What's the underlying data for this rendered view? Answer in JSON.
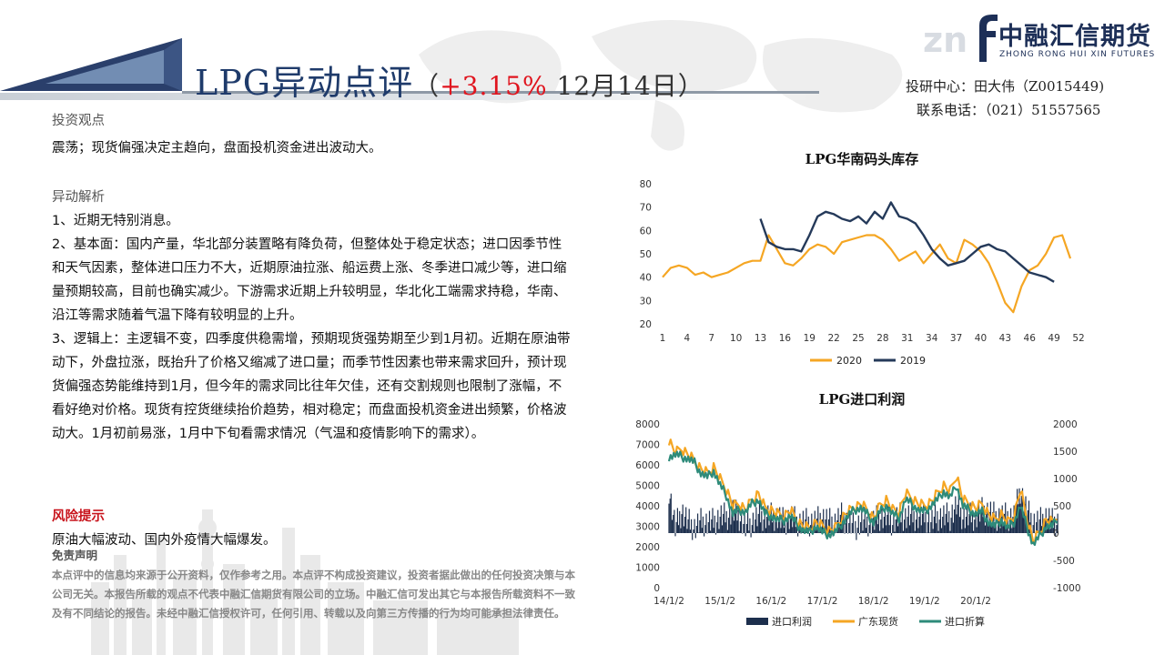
{
  "header": {
    "title_main": "LPG异动点评",
    "paren_open": "（",
    "change_pct": "+3.15%",
    "date": " 12月14日",
    "paren_close": "）"
  },
  "logo": {
    "brand_cn": "中融汇信期货",
    "brand_en": "ZHONG RONG HUI XIN FUTURES"
  },
  "contact": {
    "analyst": "投研中心：田大伟（Z0015449)",
    "phone": "联系电话：（021）51557565"
  },
  "view": {
    "heading": "投资观点",
    "text": "震荡；现货偏强决定主趋向，盘面投机资金进出波动大。"
  },
  "analysis": {
    "heading": "异动解析",
    "p1": "1、近期无特别消息。",
    "p2": "2、基本面：国内产量，华北部分装置略有降负荷，但整体处于稳定状态；进口因季节性和天气因素，整体进口压力不大，近期原油拉涨、船运费上涨、冬季进口减少等，进口缩量预期较高，目前也确实减少。下游需求近期上升较明显，华北化工端需求持稳，华南、沿江等需求随着气温下降有较明显的上升。",
    "p3": "3、逻辑上：主逻辑不变，四季度供稳需增，预期现货强势期至少到1月初。近期在原油带动下，外盘拉涨，既抬升了价格又缩减了进口量；而季节性因素也带来需求回升，预计现货偏强态势能维持到1月，但今年的需求同比往年欠佳，还有交割规则也限制了涨幅，不看好绝对价格。现货有控货继续抬价趋势，相对稳定；而盘面投机资金进出频繁，价格波动大。1月初前易涨，1月中下旬看需求情况（气温和疫情影响下的需求）。"
  },
  "risk": {
    "heading": "风险提示",
    "text": "原油大幅波动、国内外疫情大幅爆发。"
  },
  "disclaimer": {
    "heading": "免责声明",
    "text": "本点评中的信息均来源于公开资料，仅作参考之用。本点评不构成投资建议，投资者据此做出的任何投资决策与本公司无关。本报告所载的观点不代表中融汇信期货有限公司的立场。中融汇信可发出其它与本报告所载资料不一致及有不同结论的报告。未经中融汇信授权许可，任何引用、转载以及向第三方传播的行为均可能承担法律责任。"
  },
  "colors": {
    "navy": "#1f3b6b",
    "red": "#e0141e",
    "orange": "#f5a623",
    "dark": "#253a5a",
    "teal": "#2e8b7a"
  },
  "chart_data": [
    {
      "type": "line",
      "title": "LPG华南码头库存",
      "xlabel": "",
      "ylabel": "",
      "x_ticks": [
        "1",
        "4",
        "7",
        "10",
        "13",
        "16",
        "19",
        "22",
        "25",
        "28",
        "31",
        "34",
        "37",
        "40",
        "43",
        "46",
        "49",
        "52"
      ],
      "ylim": [
        20,
        80
      ],
      "y_ticks": [
        20,
        30,
        40,
        50,
        60,
        70,
        80
      ],
      "legend_position": "bottom",
      "series": [
        {
          "name": "2020",
          "color": "#f5a623",
          "start_week": 1,
          "values": [
            40,
            44,
            45,
            44,
            41,
            42,
            40,
            41,
            42,
            44,
            46,
            47,
            47,
            58,
            52,
            46,
            45,
            48,
            52,
            54,
            53,
            50,
            55,
            56,
            57,
            58,
            58,
            56,
            52,
            47,
            49,
            51,
            46,
            50,
            54,
            48,
            46,
            56,
            54,
            51,
            46,
            38,
            29,
            25,
            36,
            43,
            45,
            50,
            57,
            58,
            48
          ]
        },
        {
          "name": "2019",
          "color": "#253a5a",
          "start_week": 13,
          "values": [
            65,
            55,
            53,
            52,
            52,
            51,
            58,
            66,
            68,
            67,
            65,
            64,
            66,
            63,
            68,
            65,
            72,
            66,
            65,
            63,
            58,
            52,
            48,
            45,
            46,
            47,
            50,
            53,
            54,
            52,
            51,
            48,
            45,
            42,
            41,
            40,
            38
          ]
        }
      ]
    },
    {
      "type": "line",
      "title": "LPG进口利润",
      "x_ticks": [
        "14/1/2",
        "15/1/2",
        "16/1/2",
        "17/1/2",
        "18/1/2",
        "19/1/2",
        "20/1/2"
      ],
      "y_left": [
        0,
        1000,
        2000,
        3000,
        4000,
        5000,
        6000,
        7000,
        8000
      ],
      "y_right": [
        -1000,
        -500,
        0,
        500,
        1000,
        1500,
        2000
      ],
      "legend_position": "bottom",
      "series": [
        {
          "name": "进口利润",
          "axis": "right",
          "style": "bar",
          "color": "#1d2f4d"
        },
        {
          "name": "广东现货",
          "axis": "left",
          "color": "#f5a623"
        },
        {
          "name": "进口折算",
          "axis": "left",
          "color": "#2e8b7a"
        }
      ],
      "points_year_step": 0.125,
      "guangdong_spot": [
        7200,
        6600,
        6800,
        6500,
        6200,
        5800,
        5600,
        5900,
        5300,
        4800,
        4000,
        4100,
        3800,
        4300,
        4600,
        3900,
        3800,
        3600,
        3500,
        3800,
        3300,
        3000,
        2900,
        3200,
        3000,
        2800,
        2900,
        3400,
        3700,
        3900,
        4100,
        3800,
        3400,
        4000,
        4300,
        3800,
        3700,
        4600,
        4400,
        4100,
        4000,
        4200,
        4600,
        5000,
        4700,
        5500,
        4300,
        4100,
        3900,
        4100,
        3600,
        3300,
        3600,
        3200,
        3500,
        4800,
        3400,
        2300,
        2700,
        3300,
        3200,
        3700
      ],
      "import_equiv": [
        6400,
        6500,
        6400,
        6300,
        6100,
        5600,
        5400,
        5700,
        5000,
        4500,
        3600,
        3800,
        3700,
        4100,
        4300,
        3600,
        3500,
        3300,
        3300,
        3500,
        3100,
        2800,
        2700,
        3000,
        2700,
        2600,
        2700,
        3100,
        3500,
        3800,
        3900,
        3600,
        3200,
        3700,
        4000,
        3600,
        3400,
        4300,
        4100,
        3800,
        3700,
        4000,
        4300,
        4700,
        4400,
        5000,
        4000,
        3800,
        3600,
        3700,
        3200,
        3000,
        3300,
        2900,
        3200,
        4000,
        3000,
        2100,
        2500,
        3000,
        3000,
        3500
      ],
      "import_profit": [
        800,
        100,
        400,
        200,
        100,
        200,
        200,
        200,
        300,
        300,
        400,
        300,
        100,
        200,
        300,
        300,
        300,
        300,
        200,
        300,
        200,
        200,
        200,
        200,
        300,
        200,
        200,
        300,
        200,
        100,
        200,
        200,
        200,
        300,
        300,
        200,
        300,
        300,
        300,
        300,
        300,
        200,
        300,
        300,
        300,
        500,
        300,
        300,
        300,
        400,
        400,
        300,
        300,
        300,
        300,
        800,
        400,
        200,
        200,
        300,
        200,
        200
      ]
    }
  ]
}
